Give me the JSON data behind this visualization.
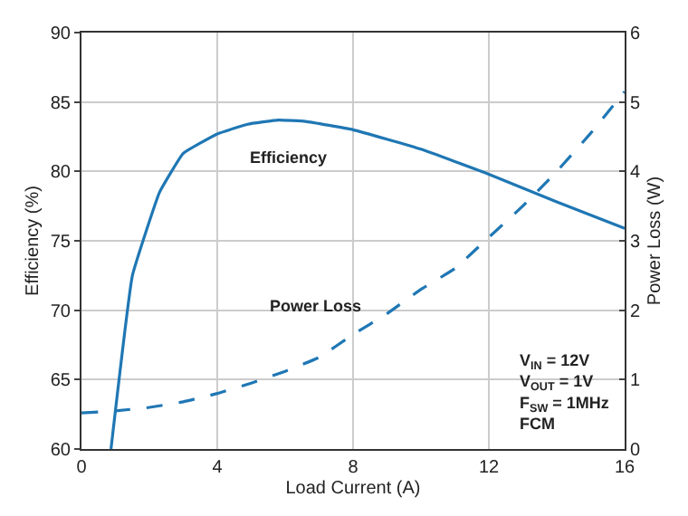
{
  "chart_data": {
    "type": "line",
    "xlabel": "Load Current (A)",
    "ylabel": "Efficiency (%)",
    "y2label": "Power Loss (W)",
    "series": [
      {
        "name": "Efficiency",
        "color": "#1f77b4",
        "line_style": "solid",
        "x": [
          0.87,
          1.5,
          2.3,
          3,
          4,
          4.9,
          5.8,
          6.6,
          8,
          10,
          12,
          14,
          16
        ],
        "values": [
          60,
          72.5,
          78.5,
          81.3,
          82.7,
          83.4,
          83.7,
          83.6,
          83,
          81.6,
          79.8,
          77.8,
          75.9
        ]
      },
      {
        "name": "Power Loss",
        "color": "#1f77b4",
        "line_style": "dashed",
        "axis": "y2",
        "x": [
          0,
          1,
          2,
          3,
          4,
          5,
          6,
          7,
          8,
          9,
          10,
          11,
          12,
          13,
          14,
          15,
          16
        ],
        "values": [
          0.52,
          0.55,
          0.6,
          0.68,
          0.8,
          0.95,
          1.12,
          1.32,
          1.65,
          1.95,
          2.3,
          2.6,
          3.05,
          3.5,
          4.0,
          4.55,
          5.15
        ]
      }
    ],
    "annotations": [
      "V$_{IN}$ = 12V\nV$_{OUT}$ = 1V\nF$_{SW}$ = 1MHz\nFCM"
    ],
    "xlim": [
      0,
      16
    ],
    "xticks": [
      0,
      4,
      8,
      12,
      16
    ],
    "ylim": [
      60,
      90
    ],
    "yticks": [
      60,
      65,
      70,
      75,
      80,
      85,
      90
    ],
    "y2lim": [
      0,
      6
    ],
    "y2ticks": [
      0,
      1,
      2,
      3,
      4,
      5,
      6
    ],
    "grid": true,
    "legend": false
  }
}
